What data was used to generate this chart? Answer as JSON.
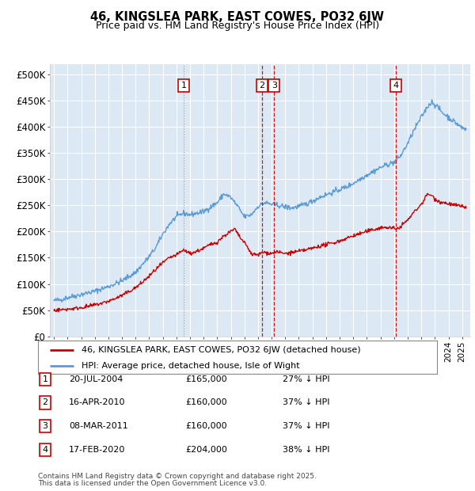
{
  "title": "46, KINGSLEA PARK, EAST COWES, PO32 6JW",
  "subtitle": "Price paid vs. HM Land Registry's House Price Index (HPI)",
  "legend_line1": "46, KINGSLEA PARK, EAST COWES, PO32 6JW (detached house)",
  "legend_line2": "HPI: Average price, detached house, Isle of Wight",
  "hpi_color": "#5b9bd5",
  "price_color": "#cc0000",
  "plot_bg": "#dce9f5",
  "grid_color": "#ffffff",
  "vline_color_red": "#cc0000",
  "vline_color_gray": "#aaaaaa",
  "ylim": [
    0,
    520000
  ],
  "yticks": [
    0,
    50000,
    100000,
    150000,
    200000,
    250000,
    300000,
    350000,
    400000,
    450000,
    500000
  ],
  "ytick_labels": [
    "£0",
    "£50K",
    "£100K",
    "£150K",
    "£200K",
    "£250K",
    "£300K",
    "£350K",
    "£400K",
    "£450K",
    "£500K"
  ],
  "xlim_left": 1994.7,
  "xlim_right": 2025.6,
  "sale_events": [
    {
      "num": 1,
      "x_approx": 2004.55,
      "vline_style": "dotted",
      "vline_color": "#999999"
    },
    {
      "num": 2,
      "x_approx": 2010.29,
      "vline_style": "dashed",
      "vline_color": "#cc0000"
    },
    {
      "num": 3,
      "x_approx": 2011.18,
      "vline_style": "dashed",
      "vline_color": "#cc0000"
    },
    {
      "num": 4,
      "x_approx": 2020.13,
      "vline_style": "dashed",
      "vline_color": "#cc0000"
    }
  ],
  "table_rows": [
    {
      "num": 1,
      "date": "20-JUL-2004",
      "price": "£165,000",
      "pct": "27% ↓ HPI"
    },
    {
      "num": 2,
      "date": "16-APR-2010",
      "price": "£160,000",
      "pct": "37% ↓ HPI"
    },
    {
      "num": 3,
      "date": "08-MAR-2011",
      "price": "£160,000",
      "pct": "37% ↓ HPI"
    },
    {
      "num": 4,
      "date": "17-FEB-2020",
      "price": "£204,000",
      "pct": "38% ↓ HPI"
    }
  ],
  "footnote1": "Contains HM Land Registry data © Crown copyright and database right 2025.",
  "footnote2": "This data is licensed under the Open Government Licence v3.0."
}
